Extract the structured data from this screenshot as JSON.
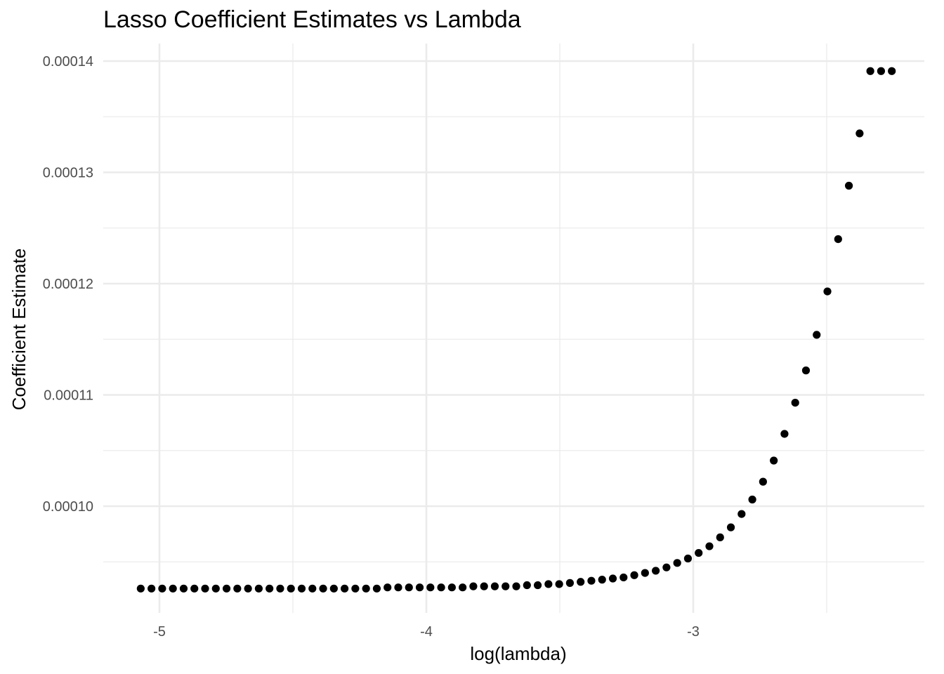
{
  "chart_data": {
    "type": "scatter",
    "title": "Lasso Coefficient Estimates vs Lambda",
    "xlabel": "log(lambda)",
    "ylabel": "Coefficient Estimate",
    "x_ticks": [
      -5,
      -4,
      -3
    ],
    "x_tick_labels": [
      "-5",
      "-4",
      "-3"
    ],
    "y_ticks": [
      0.0001,
      0.00011,
      0.00012,
      0.00013,
      0.00014
    ],
    "y_tick_labels": [
      "0.00010",
      "0.00011",
      "0.00012",
      "0.00013",
      "0.00014"
    ],
    "xlim": [
      -5.18,
      -2.19
    ],
    "ylim": [
      9.14e-05,
      0.0001415
    ],
    "grid": true,
    "point_color": "#000000",
    "series": [
      {
        "x": [
          -5.0701,
          -5.0299,
          -4.9897,
          -4.9495,
          -4.9093,
          -4.8691,
          -4.8289,
          -4.7887,
          -4.7485,
          -4.7083,
          -4.6681,
          -4.6279,
          -4.5877,
          -4.5475,
          -4.5073,
          -4.4671,
          -4.4269,
          -4.3867,
          -4.3465,
          -4.3063,
          -4.2661,
          -4.2259,
          -4.1857,
          -4.1455,
          -4.1053,
          -4.0651,
          -4.0249,
          -3.9847,
          -3.9445,
          -3.9043,
          -3.8641,
          -3.8239,
          -3.7837,
          -3.7435,
          -3.7033,
          -3.6631,
          -3.6229,
          -3.5827,
          -3.5425,
          -3.5023,
          -3.4621,
          -3.4219,
          -3.3817,
          -3.3415,
          -3.3013,
          -3.2611,
          -3.2209,
          -3.1807,
          -3.1405,
          -3.1003,
          -3.0601,
          -3.0199,
          -2.9797,
          -2.9395,
          -2.8993,
          -2.8591,
          -2.8189,
          -2.7787,
          -2.7385,
          -2.6983,
          -2.6581,
          -2.6179,
          -2.5777,
          -2.5375,
          -2.4973,
          -2.4571,
          -2.4169,
          -2.3767,
          -2.3365,
          -2.2963,
          -2.2561
        ],
        "y": [
          9.26e-05,
          9.26e-05,
          9.26e-05,
          9.26e-05,
          9.26e-05,
          9.26e-05,
          9.26e-05,
          9.26e-05,
          9.26e-05,
          9.26e-05,
          9.26e-05,
          9.26e-05,
          9.26e-05,
          9.26e-05,
          9.26e-05,
          9.26e-05,
          9.26e-05,
          9.26e-05,
          9.26e-05,
          9.26e-05,
          9.26e-05,
          9.26e-05,
          9.26e-05,
          9.27e-05,
          9.27e-05,
          9.27e-05,
          9.27e-05,
          9.27e-05,
          9.27e-05,
          9.27e-05,
          9.27e-05,
          9.28e-05,
          9.28e-05,
          9.28e-05,
          9.28e-05,
          9.28e-05,
          9.29e-05,
          9.29e-05,
          9.3e-05,
          9.3e-05,
          9.31e-05,
          9.32e-05,
          9.33e-05,
          9.34e-05,
          9.35e-05,
          9.36e-05,
          9.38e-05,
          9.4e-05,
          9.42e-05,
          9.45e-05,
          9.49e-05,
          9.53e-05,
          9.58e-05,
          9.64e-05,
          9.72e-05,
          9.81e-05,
          9.93e-05,
          0.0001006,
          0.0001022,
          0.0001041,
          0.0001065,
          0.0001093,
          0.0001122,
          0.0001154,
          0.0001193,
          0.000124,
          0.0001288,
          0.0001335,
          0.0001391,
          0.0001391,
          0.0001391
        ]
      }
    ]
  }
}
